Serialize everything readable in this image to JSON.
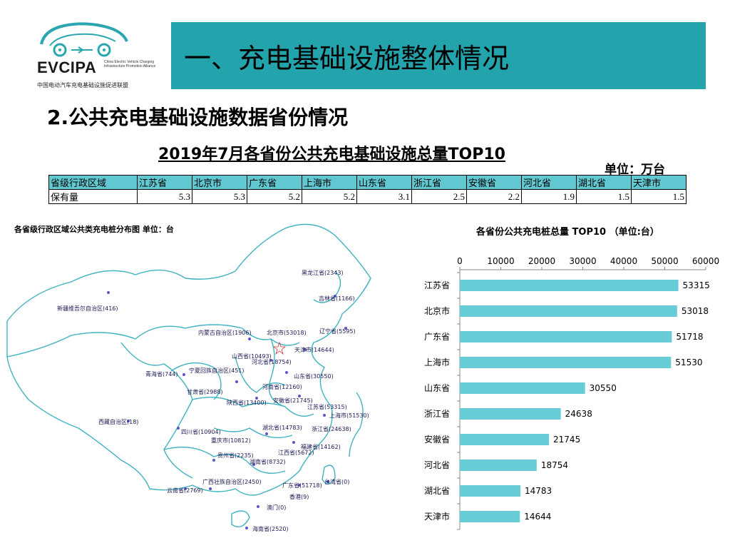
{
  "logo": {
    "name": "EVCIPA",
    "sub": "China Electric Vehicle Charging Infrastructure Promotion Alliance",
    "cn": "中国电动汽车充电基础设施促进联盟"
  },
  "header": {
    "title": "一、充电基础设施整体情况"
  },
  "subtitle": "2.公共充电基础设施数据省份情况",
  "table": {
    "title": "2019年7月各省份公共充电基础设施总量TOP10",
    "unit": "单位：万台",
    "row_header_1": "省级行政区域",
    "row_header_2": "保有量",
    "provinces": [
      "江苏省",
      "北京市",
      "广东省",
      "上海市",
      "山东省",
      "浙江省",
      "安徽省",
      "河北省",
      "湖北省",
      "天津市"
    ],
    "values": [
      "5.3",
      "5.3",
      "5.2",
      "5.2",
      "3.1",
      "2.5",
      "2.2",
      "1.9",
      "1.5",
      "1.5"
    ]
  },
  "map": {
    "title": "各省级行政区域公共类充电桩分布图   单位：台",
    "labels": [
      "黑龙江省(2343)",
      "吉林省(1166)",
      "辽宁省(5595)",
      "内蒙古自治区(1906)",
      "北京市(53018)",
      "天津市(14644)",
      "新疆维吾尔自治区(416)",
      "山西省(10493)",
      "河北省(18754)",
      "山东省(30550)",
      "青海省(744)",
      "宁夏回族自治区(451)",
      "甘肃省(2988)",
      "河南省(12160)",
      "陕西省(13400)",
      "安徽省(21745)",
      "江苏省(53315)",
      "上海市(51530)",
      "西藏自治区(18)",
      "湖北省(14783)",
      "浙江省(24638)",
      "四川省(10904)",
      "重庆市(10812)",
      "福建省(14162)",
      "贵州省(2235)",
      "江西省(5672)",
      "湖南省(8732)",
      "台湾省(0)",
      "广西壮族自治区(2450)",
      "广东省(51718)",
      "云南省(2769)",
      "香港(9)",
      "澳门(0)",
      "海南省(2520)"
    ]
  },
  "chart_data": {
    "type": "bar",
    "orientation": "horizontal",
    "title": "各省份公共充电桩总量 TOP10  （单位:台）",
    "categories": [
      "江苏省",
      "北京市",
      "广东省",
      "上海市",
      "山东省",
      "浙江省",
      "安徽省",
      "河北省",
      "湖北省",
      "天津市"
    ],
    "values": [
      53315,
      53018,
      51718,
      51530,
      30550,
      24638,
      21745,
      18754,
      14783,
      14644
    ],
    "value_labels": [
      "53315",
      "53018",
      "51718",
      "51530",
      "30550",
      "24638",
      "21745",
      "18754",
      "14783",
      "14644"
    ],
    "xlim": [
      0,
      60000
    ],
    "xticks": [
      "0",
      "10000",
      "20000",
      "30000",
      "40000",
      "50000",
      "60000"
    ],
    "xaxis_position": "top",
    "bar_color": "#67ccd6",
    "grid": false
  }
}
